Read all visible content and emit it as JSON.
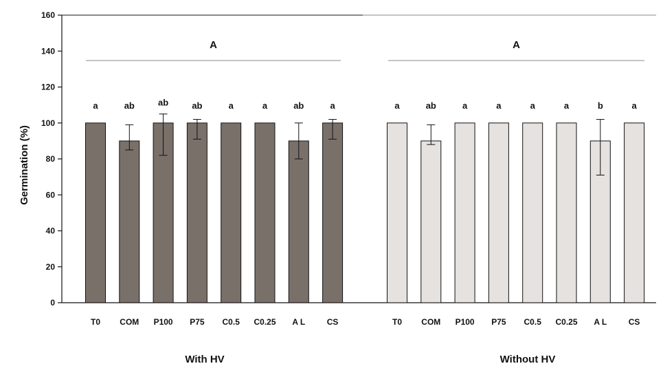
{
  "chart_data": [
    {
      "type": "bar",
      "panel_label": "With HV",
      "group_letter": "A",
      "ylabel": "Germination (%)",
      "ylim": [
        0,
        160
      ],
      "yticks": [
        0,
        20,
        40,
        60,
        80,
        100,
        120,
        140,
        160
      ],
      "bar_color": "#7a706a",
      "categories": [
        "T0",
        "COM",
        "P100",
        "P75",
        "C0.5",
        "C0.25",
        "A L",
        "CS"
      ],
      "values": [
        100,
        90,
        100,
        100,
        100,
        100,
        90,
        100
      ],
      "error_low": [
        100,
        85,
        82,
        91,
        100,
        100,
        80,
        91
      ],
      "error_high": [
        100,
        99,
        105,
        102,
        100,
        100,
        100,
        102
      ],
      "significance": [
        "a",
        "ab",
        "ab",
        "ab",
        "a",
        "a",
        "ab",
        "a"
      ]
    },
    {
      "type": "bar",
      "panel_label": "Without HV",
      "group_letter": "A",
      "ylim": [
        0,
        160
      ],
      "bar_color": "#e6e2df",
      "categories": [
        "T0",
        "COM",
        "P100",
        "P75",
        "C0.5",
        "C0.25",
        "A L",
        "CS"
      ],
      "values": [
        100,
        90,
        100,
        100,
        100,
        100,
        90,
        100
      ],
      "error_low": [
        100,
        88,
        100,
        100,
        100,
        100,
        71,
        100
      ],
      "error_high": [
        100,
        99,
        100,
        100,
        100,
        100,
        102,
        100
      ],
      "significance": [
        "a",
        "ab",
        "a",
        "a",
        "a",
        "a",
        "b",
        "a"
      ]
    }
  ]
}
